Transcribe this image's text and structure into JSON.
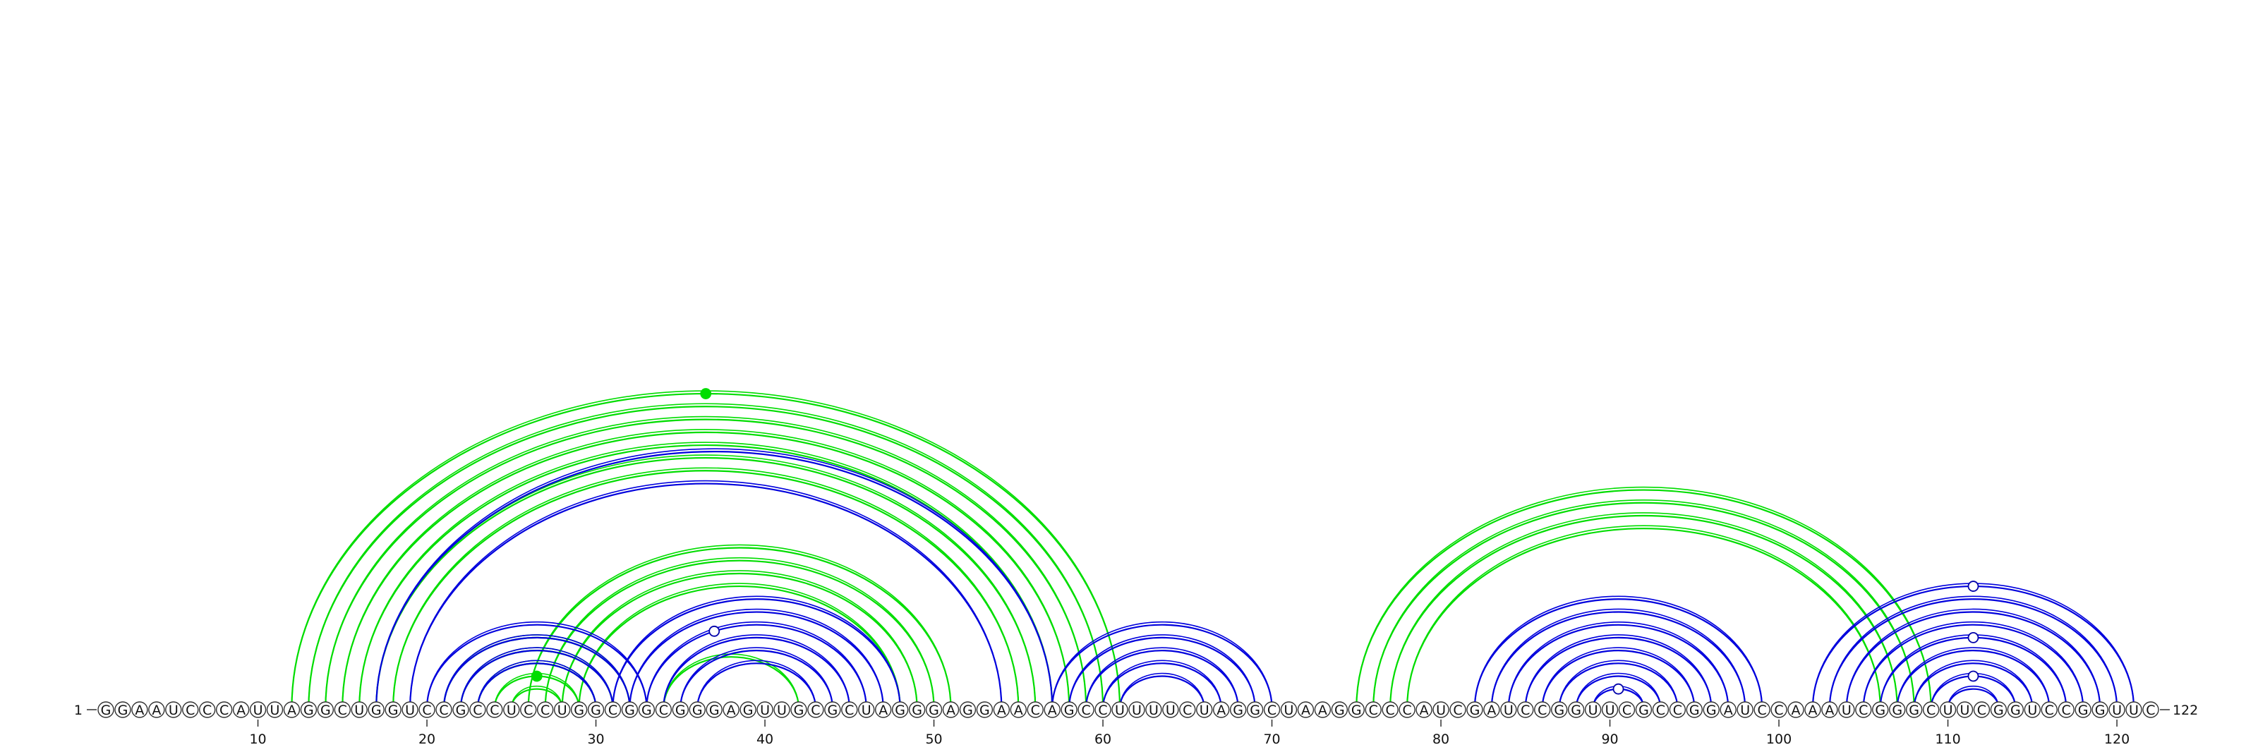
{
  "diagram": {
    "sequence": "GGAAUCCCAUUAGGCUGGUCCGCCUCCUGGCGGCGGGAGUUGCGCUAGGGAGGAACAGCCUUUUCUAGGCUAAGGCCCAUCGAUCCGGUUCGCCGGAUCCAAAUCGGGCUUCGGUCCGGUUC",
    "start_label": "1",
    "end_label": "122",
    "tick_labels": [
      "10",
      "20",
      "30",
      "40",
      "50",
      "60",
      "70",
      "80",
      "90",
      "100",
      "110",
      "120"
    ],
    "colors": {
      "blue": "#0000dd",
      "green": "#00dd00"
    },
    "arc_groups": [
      {
        "color": "green",
        "double": false,
        "pairs": [
          [
            12,
            61
          ],
          [
            13,
            60
          ],
          [
            14,
            59
          ],
          [
            15,
            58
          ],
          [
            16,
            57
          ],
          [
            17,
            56
          ],
          [
            18,
            55
          ],
          [
            26,
            51
          ],
          [
            27,
            50
          ],
          [
            28,
            49
          ],
          [
            29,
            48
          ],
          [
            21,
            32
          ],
          [
            22,
            31
          ],
          [
            23,
            30
          ],
          [
            24,
            29
          ],
          [
            25,
            28
          ],
          [
            34,
            42
          ],
          [
            75,
            109
          ],
          [
            76,
            108
          ],
          [
            77,
            107
          ],
          [
            78,
            106
          ]
        ]
      },
      {
        "color": "blue",
        "double": false,
        "pairs": [
          [
            17,
            57
          ],
          [
            19,
            54
          ],
          [
            31,
            48
          ],
          [
            32,
            47
          ],
          [
            33,
            46
          ],
          [
            34,
            45
          ],
          [
            35,
            44
          ],
          [
            36,
            43
          ],
          [
            20,
            33
          ],
          [
            21,
            32
          ],
          [
            22,
            31
          ],
          [
            23,
            30
          ],
          [
            57,
            70
          ],
          [
            58,
            69
          ],
          [
            59,
            68
          ],
          [
            60,
            67
          ],
          [
            61,
            66
          ],
          [
            82,
            99
          ],
          [
            83,
            98
          ],
          [
            84,
            97
          ],
          [
            85,
            96
          ],
          [
            86,
            95
          ],
          [
            87,
            94
          ],
          [
            88,
            93
          ],
          [
            89,
            92
          ],
          [
            102,
            121
          ],
          [
            103,
            120
          ],
          [
            104,
            119
          ],
          [
            105,
            118
          ],
          [
            106,
            117
          ],
          [
            107,
            116
          ],
          [
            108,
            115
          ],
          [
            109,
            114
          ],
          [
            110,
            113
          ]
        ]
      }
    ],
    "markers": [
      {
        "pair": [
          12,
          61
        ],
        "index": 1,
        "filled": true,
        "color": "green"
      },
      {
        "pair": [
          31,
          43
        ],
        "index": 1,
        "filled": false,
        "color": "blue"
      },
      {
        "pair": [
          89,
          92
        ],
        "index": 1,
        "filled": false,
        "color": "blue"
      },
      {
        "pair": [
          102,
          121
        ],
        "index": 3,
        "filled": false,
        "color": "blue"
      },
      {
        "pair": [
          106,
          117
        ],
        "index": 1,
        "filled": false,
        "color": "blue"
      },
      {
        "pair": [
          109,
          114
        ],
        "index": 1,
        "filled": false,
        "color": "blue"
      },
      {
        "pair": [
          24,
          29
        ],
        "index": 1,
        "filled": true,
        "color": "green"
      }
    ]
  }
}
